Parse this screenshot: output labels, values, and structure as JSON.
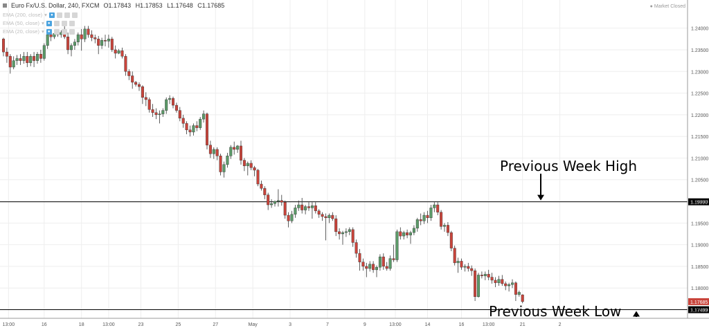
{
  "header": {
    "symbol": "Euro Fx/U.S. Dollar, 240, FXCM",
    "open": "O1.17843",
    "high": "H1.17853",
    "low": "L1.17648",
    "close": "C1.17685"
  },
  "indicators": [
    {
      "label": "EMA (200, close)"
    },
    {
      "label": "EMA (50, close)"
    },
    {
      "label": "EMA (20, close)"
    }
  ],
  "market_status": "Market Closed",
  "annotations": {
    "prev_week_high": "Previous Week High",
    "prev_week_low": "Previous Week Low"
  },
  "colors": {
    "up": "#5b9a68",
    "down": "#c9443b",
    "wick": "#333333",
    "grid": "#eeeeee",
    "level_line": "#000000",
    "price_label_bg": "#000000",
    "last_price_bg": "#c9443b"
  },
  "chart_data": {
    "type": "candlestick",
    "ylim": [
      1.173,
      1.2465
    ],
    "y_ticks": [
      "1.24000",
      "1.23500",
      "1.23000",
      "1.22500",
      "1.22000",
      "1.21500",
      "1.21000",
      "1.20500",
      "1.20000",
      "1.19500",
      "1.19000",
      "1.18500",
      "1.18000",
      "1.17500"
    ],
    "x_ticks": [
      {
        "label": "13:00",
        "bar": 1.5
      },
      {
        "label": "16",
        "bar": 12
      },
      {
        "label": "18",
        "bar": 23
      },
      {
        "label": "13:00",
        "bar": 31
      },
      {
        "label": "23",
        "bar": 40.5
      },
      {
        "label": "25",
        "bar": 51.5
      },
      {
        "label": "27",
        "bar": 62.5
      },
      {
        "label": "May",
        "bar": 73.5
      },
      {
        "label": "3",
        "bar": 84.5
      },
      {
        "label": "7",
        "bar": 95.5
      },
      {
        "label": "9",
        "bar": 106.5
      },
      {
        "label": "13:00",
        "bar": 115.5
      },
      {
        "label": "14",
        "bar": 125
      },
      {
        "label": "16",
        "bar": 135
      },
      {
        "label": "13:00",
        "bar": 143
      },
      {
        "label": "21",
        "bar": 153
      },
      {
        "label": "2",
        "bar": 164
      }
    ],
    "levels": [
      {
        "name": "Previous Week High",
        "value": 1.1999,
        "label": "1.19990"
      },
      {
        "name": "Previous Week Low",
        "value": 1.17499,
        "label": "1.17499"
      }
    ],
    "last_price": {
      "value": 1.17685,
      "label": "1.17685"
    },
    "candles": [
      [
        1.2375,
        1.2378,
        1.2335,
        1.2345
      ],
      [
        1.2345,
        1.2355,
        1.232,
        1.2335
      ],
      [
        1.2335,
        1.234,
        1.2295,
        1.231
      ],
      [
        1.231,
        1.2335,
        1.2305,
        1.2325
      ],
      [
        1.2325,
        1.2338,
        1.2315,
        1.233
      ],
      [
        1.233,
        1.234,
        1.2315,
        1.2325
      ],
      [
        1.2325,
        1.2345,
        1.2318,
        1.2335
      ],
      [
        1.2335,
        1.2345,
        1.231,
        1.232
      ],
      [
        1.232,
        1.234,
        1.2312,
        1.2335
      ],
      [
        1.2335,
        1.2345,
        1.231,
        1.2325
      ],
      [
        1.2325,
        1.2345,
        1.2318,
        1.234
      ],
      [
        1.234,
        1.235,
        1.232,
        1.233
      ],
      [
        1.233,
        1.2365,
        1.2325,
        1.236
      ],
      [
        1.236,
        1.2395,
        1.2352,
        1.2385
      ],
      [
        1.2385,
        1.2392,
        1.237,
        1.238
      ],
      [
        1.238,
        1.2392,
        1.2375,
        1.2388
      ],
      [
        1.2388,
        1.2395,
        1.238,
        1.2385
      ],
      [
        1.2385,
        1.2395,
        1.2378,
        1.239
      ],
      [
        1.239,
        1.2415,
        1.2375,
        1.238
      ],
      [
        1.238,
        1.239,
        1.234,
        1.235
      ],
      [
        1.235,
        1.2365,
        1.2335,
        1.236
      ],
      [
        1.236,
        1.2375,
        1.235,
        1.2368
      ],
      [
        1.2368,
        1.239,
        1.236,
        1.2385
      ],
      [
        1.2385,
        1.2398,
        1.2348,
        1.2375
      ],
      [
        1.2375,
        1.2405,
        1.2368,
        1.2398
      ],
      [
        1.2398,
        1.2405,
        1.2378,
        1.2385
      ],
      [
        1.2385,
        1.2395,
        1.237,
        1.2378
      ],
      [
        1.2378,
        1.2385,
        1.2365,
        1.2375
      ],
      [
        1.2375,
        1.2382,
        1.234,
        1.236
      ],
      [
        1.236,
        1.2378,
        1.2352,
        1.2372
      ],
      [
        1.2372,
        1.2385,
        1.2358,
        1.237
      ],
      [
        1.237,
        1.2385,
        1.2355,
        1.2375
      ],
      [
        1.2375,
        1.238,
        1.2345,
        1.235
      ],
      [
        1.235,
        1.236,
        1.233,
        1.2342
      ],
      [
        1.2342,
        1.2352,
        1.234,
        1.2348
      ],
      [
        1.2348,
        1.2355,
        1.233,
        1.2335
      ],
      [
        1.2335,
        1.234,
        1.229,
        1.23
      ],
      [
        1.23,
        1.2305,
        1.228,
        1.229
      ],
      [
        1.229,
        1.23,
        1.226,
        1.2275
      ],
      [
        1.2275,
        1.2278,
        1.2265,
        1.227
      ],
      [
        1.227,
        1.2275,
        1.2255,
        1.2265
      ],
      [
        1.2265,
        1.2268,
        1.2225,
        1.224
      ],
      [
        1.224,
        1.2252,
        1.222,
        1.2235
      ],
      [
        1.2235,
        1.224,
        1.2205,
        1.2212
      ],
      [
        1.2212,
        1.2225,
        1.2195,
        1.2205
      ],
      [
        1.2205,
        1.2215,
        1.219,
        1.22
      ],
      [
        1.22,
        1.221,
        1.218,
        1.2202
      ],
      [
        1.2202,
        1.2215,
        1.2195,
        1.221
      ],
      [
        1.221,
        1.224,
        1.2202,
        1.2235
      ],
      [
        1.2235,
        1.2245,
        1.2225,
        1.2238
      ],
      [
        1.2238,
        1.2242,
        1.2215,
        1.2222
      ],
      [
        1.2222,
        1.2228,
        1.2205,
        1.221
      ],
      [
        1.221,
        1.2218,
        1.2185,
        1.2192
      ],
      [
        1.2192,
        1.22,
        1.217,
        1.218
      ],
      [
        1.218,
        1.2185,
        1.2155,
        1.2165
      ],
      [
        1.2165,
        1.2175,
        1.215,
        1.216
      ],
      [
        1.216,
        1.218,
        1.2152,
        1.2175
      ],
      [
        1.2175,
        1.2185,
        1.2162,
        1.217
      ],
      [
        1.217,
        1.2195,
        1.2165,
        1.219
      ],
      [
        1.219,
        1.221,
        1.2182,
        1.2202
      ],
      [
        1.2202,
        1.2205,
        1.212,
        1.213
      ],
      [
        1.213,
        1.214,
        1.21,
        1.211
      ],
      [
        1.211,
        1.2125,
        1.2098,
        1.212
      ],
      [
        1.212,
        1.2125,
        1.2095,
        1.2105
      ],
      [
        1.2105,
        1.211,
        1.206,
        1.2068
      ],
      [
        1.2068,
        1.2092,
        1.2055,
        1.2085
      ],
      [
        1.2085,
        1.2112,
        1.2078,
        1.2105
      ],
      [
        1.2105,
        1.213,
        1.2098,
        1.2125
      ],
      [
        1.2125,
        1.2138,
        1.2108,
        1.212
      ],
      [
        1.212,
        1.213,
        1.2112,
        1.2128
      ],
      [
        1.2128,
        1.214,
        1.2085,
        1.2095
      ],
      [
        1.2095,
        1.21,
        1.207,
        1.2082
      ],
      [
        1.2082,
        1.2092,
        1.206,
        1.2088
      ],
      [
        1.2088,
        1.2095,
        1.2072,
        1.2078
      ],
      [
        1.2078,
        1.2082,
        1.2058,
        1.2072
      ],
      [
        1.2072,
        1.2075,
        1.2035,
        1.204
      ],
      [
        1.204,
        1.2048,
        1.2025,
        1.203
      ],
      [
        1.203,
        1.2035,
        1.2005,
        1.2015
      ],
      [
        1.2015,
        1.202,
        1.198,
        1.1992
      ],
      [
        1.1992,
        1.2005,
        1.1985,
        1.1995
      ],
      [
        1.1995,
        1.2002,
        1.1988,
        1.2
      ],
      [
        1.2,
        1.2028,
        1.1988,
        1.2002
      ],
      [
        1.2002,
        1.2015,
        1.199,
        1.1998
      ],
      [
        1.1998,
        1.2002,
        1.196,
        1.1968
      ],
      [
        1.1968,
        1.1975,
        1.194,
        1.1955
      ],
      [
        1.1955,
        1.1978,
        1.195,
        1.197
      ],
      [
        1.197,
        1.1992,
        1.1962,
        1.1985
      ],
      [
        1.1985,
        1.2002,
        1.1978,
        1.1992
      ],
      [
        1.1992,
        1.2008,
        1.1972,
        1.198
      ],
      [
        1.198,
        1.1992,
        1.197,
        1.1988
      ],
      [
        1.1988,
        1.1998,
        1.1978,
        1.1985
      ],
      [
        1.1985,
        1.1998,
        1.196,
        1.199
      ],
      [
        1.199,
        1.1998,
        1.1972,
        1.1978
      ],
      [
        1.1978,
        1.1982,
        1.1962,
        1.197
      ],
      [
        1.197,
        1.1975,
        1.1955,
        1.1965
      ],
      [
        1.1965,
        1.1972,
        1.191,
        1.1962
      ],
      [
        1.1962,
        1.1972,
        1.195,
        1.1968
      ],
      [
        1.1968,
        1.1975,
        1.1955,
        1.196
      ],
      [
        1.196,
        1.1968,
        1.192,
        1.193
      ],
      [
        1.193,
        1.1938,
        1.1912,
        1.1925
      ],
      [
        1.1925,
        1.1932,
        1.19,
        1.1928
      ],
      [
        1.1928,
        1.1938,
        1.1918,
        1.193
      ],
      [
        1.193,
        1.194,
        1.1922,
        1.1935
      ],
      [
        1.1935,
        1.194,
        1.1895,
        1.1905
      ],
      [
        1.1905,
        1.1912,
        1.187,
        1.188
      ],
      [
        1.188,
        1.189,
        1.184,
        1.186
      ],
      [
        1.186,
        1.1868,
        1.184,
        1.185
      ],
      [
        1.185,
        1.1858,
        1.1825,
        1.1845
      ],
      [
        1.1845,
        1.1862,
        1.1838,
        1.1855
      ],
      [
        1.1855,
        1.1862,
        1.1835,
        1.1842
      ],
      [
        1.1842,
        1.1852,
        1.1825,
        1.1848
      ],
      [
        1.1848,
        1.1878,
        1.184,
        1.1872
      ],
      [
        1.1872,
        1.188,
        1.1842,
        1.185
      ],
      [
        1.185,
        1.186,
        1.184,
        1.1845
      ],
      [
        1.1845,
        1.1875,
        1.184,
        1.1868
      ],
      [
        1.1868,
        1.19,
        1.186,
        1.1865
      ],
      [
        1.1865,
        1.1935,
        1.186,
        1.193
      ],
      [
        1.193,
        1.194,
        1.1912,
        1.192
      ],
      [
        1.192,
        1.1932,
        1.1912,
        1.1928
      ],
      [
        1.1928,
        1.1935,
        1.1915,
        1.1922
      ],
      [
        1.1922,
        1.1932,
        1.1902,
        1.1928
      ],
      [
        1.1928,
        1.1945,
        1.1922,
        1.1938
      ],
      [
        1.1938,
        1.1962,
        1.193,
        1.1958
      ],
      [
        1.1958,
        1.1972,
        1.1945,
        1.1955
      ],
      [
        1.1955,
        1.1975,
        1.1948,
        1.1968
      ],
      [
        1.1968,
        1.1978,
        1.195,
        1.1962
      ],
      [
        1.1962,
        1.1992,
        1.1955,
        1.1985
      ],
      [
        1.1985,
        1.1998,
        1.1975,
        1.1992
      ],
      [
        1.1992,
        1.1998,
        1.1968,
        1.1975
      ],
      [
        1.1975,
        1.198,
        1.1935,
        1.1942
      ],
      [
        1.1942,
        1.195,
        1.193,
        1.1945
      ],
      [
        1.1945,
        1.1952,
        1.192,
        1.1928
      ],
      [
        1.1928,
        1.1932,
        1.1885,
        1.1892
      ],
      [
        1.1892,
        1.1898,
        1.1852,
        1.1858
      ],
      [
        1.1858,
        1.187,
        1.1835,
        1.1862
      ],
      [
        1.1862,
        1.1868,
        1.1842,
        1.1848
      ],
      [
        1.1848,
        1.1855,
        1.1838,
        1.185
      ],
      [
        1.185,
        1.1858,
        1.1838,
        1.1845
      ],
      [
        1.1845,
        1.1852,
        1.1828,
        1.184
      ],
      [
        1.184,
        1.1845,
        1.177,
        1.178
      ],
      [
        1.178,
        1.1835,
        1.1778,
        1.183
      ],
      [
        1.183,
        1.1838,
        1.1822,
        1.1828
      ],
      [
        1.1828,
        1.1838,
        1.1818,
        1.1832
      ],
      [
        1.1832,
        1.1842,
        1.1818,
        1.1825
      ],
      [
        1.1825,
        1.1835,
        1.181,
        1.1818
      ],
      [
        1.1818,
        1.1825,
        1.1802,
        1.1812
      ],
      [
        1.1812,
        1.1828,
        1.1805,
        1.182
      ],
      [
        1.182,
        1.183,
        1.1805,
        1.181
      ],
      [
        1.181,
        1.1815,
        1.1795,
        1.1805
      ],
      [
        1.1805,
        1.1812,
        1.1792,
        1.1808
      ],
      [
        1.1808,
        1.182,
        1.18,
        1.1812
      ],
      [
        1.1812,
        1.1815,
        1.177,
        1.1785
      ],
      [
        1.1785,
        1.1794,
        1.178,
        1.179
      ],
      [
        1.17843,
        1.17853,
        1.17648,
        1.17685
      ]
    ]
  }
}
